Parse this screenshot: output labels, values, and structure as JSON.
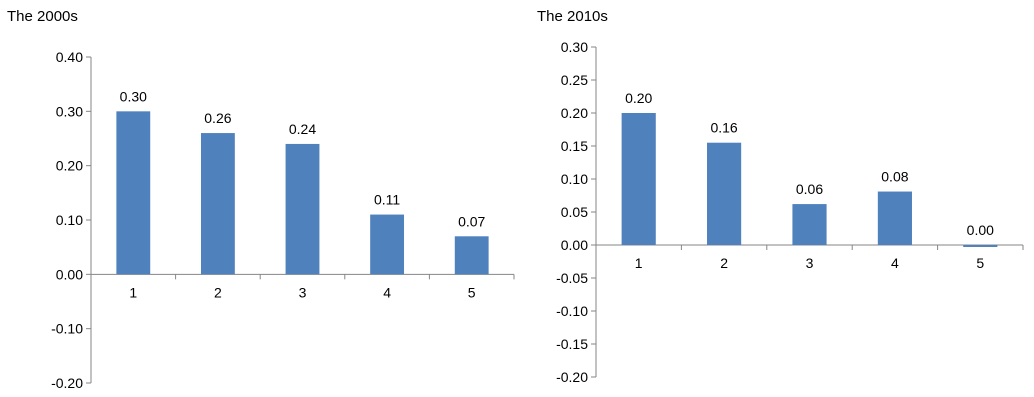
{
  "chart_data": [
    {
      "type": "bar",
      "title": "The 2000s",
      "categories": [
        "1",
        "2",
        "3",
        "4",
        "5"
      ],
      "values": [
        0.3,
        0.26,
        0.24,
        0.11,
        0.07
      ],
      "data_labels": [
        "0.30",
        "0.26",
        "0.24",
        "0.11",
        "0.07"
      ],
      "xlabel": "",
      "ylabel": "",
      "ylim": [
        -0.2,
        0.4
      ],
      "yticks": [
        0.4,
        0.3,
        0.2,
        0.1,
        0.0,
        -0.1,
        -0.2
      ],
      "ytick_labels": [
        "0.40",
        "0.30",
        "0.20",
        "0.10",
        "0.00",
        "-0.10",
        "-0.20"
      ],
      "grid": false,
      "legend": "none",
      "bar_color": "#4F81BD"
    },
    {
      "type": "bar",
      "title": "The 2010s",
      "categories": [
        "1",
        "2",
        "3",
        "4",
        "5"
      ],
      "values": [
        0.2,
        0.155,
        0.062,
        0.081,
        -0.003
      ],
      "data_labels": [
        "0.20",
        "0.16",
        "0.06",
        "0.08",
        "0.00"
      ],
      "xlabel": "",
      "ylabel": "",
      "ylim": [
        -0.2,
        0.3
      ],
      "yticks": [
        0.3,
        0.25,
        0.2,
        0.15,
        0.1,
        0.05,
        0.0,
        -0.05,
        -0.1,
        -0.15,
        -0.2
      ],
      "ytick_labels": [
        "0.30",
        "0.25",
        "0.20",
        "0.15",
        "0.10",
        "0.05",
        "0.00",
        "-0.05",
        "-0.10",
        "-0.15",
        "-0.20"
      ],
      "grid": false,
      "legend": "none",
      "bar_color": "#4F81BD"
    }
  ]
}
